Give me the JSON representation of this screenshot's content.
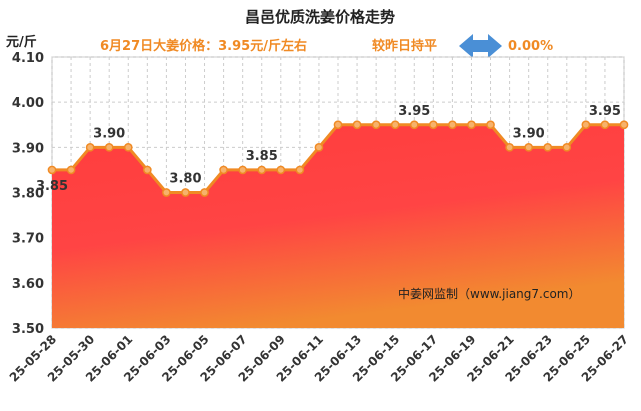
{
  "header": {
    "title": "昌邑优质洗姜价格走势",
    "unit": "元/斤",
    "price_note": "6月27日大姜价格：3.95元/斤左右",
    "compare_label": "较昨日持平",
    "change": "0.00%"
  },
  "watermark": "中姜网监制（www.jiang7.com）",
  "colors": {
    "line": "#f08a24",
    "fill_top": "#ff3d3d",
    "fill_bottom": "#f28a30",
    "arrow": "#4a8fd6",
    "accent_text": "#f08a24"
  },
  "chart_data": {
    "type": "area",
    "title": "昌邑优质洗姜价格走势",
    "ylabel": "元/斤",
    "ylim": [
      3.5,
      4.1
    ],
    "yticks": [
      "3.50",
      "3.60",
      "3.70",
      "3.80",
      "3.90",
      "4.00",
      "4.10"
    ],
    "grid": true,
    "x": [
      "25-05-28",
      "25-05-29",
      "25-05-30",
      "25-05-31",
      "25-06-01",
      "25-06-02",
      "25-06-03",
      "25-06-04",
      "25-06-05",
      "25-06-06",
      "25-06-07",
      "25-06-08",
      "25-06-09",
      "25-06-10",
      "25-06-11",
      "25-06-12",
      "25-06-13",
      "25-06-14",
      "25-06-15",
      "25-06-16",
      "25-06-17",
      "25-06-18",
      "25-06-19",
      "25-06-20",
      "25-06-21",
      "25-06-22",
      "25-06-23",
      "25-06-24",
      "25-06-25",
      "25-06-26",
      "25-06-27"
    ],
    "xticks": [
      "25-05-28",
      "25-05-30",
      "25-06-01",
      "25-06-03",
      "25-06-05",
      "25-06-07",
      "25-06-09",
      "25-06-11",
      "25-06-13",
      "25-06-15",
      "25-06-17",
      "25-06-19",
      "25-06-21",
      "25-06-23",
      "25-06-25",
      "25-06-27"
    ],
    "values": [
      3.85,
      3.85,
      3.9,
      3.9,
      3.9,
      3.85,
      3.8,
      3.8,
      3.8,
      3.85,
      3.85,
      3.85,
      3.85,
      3.85,
      3.9,
      3.95,
      3.95,
      3.95,
      3.95,
      3.95,
      3.95,
      3.95,
      3.95,
      3.95,
      3.9,
      3.9,
      3.9,
      3.9,
      3.95,
      3.95,
      3.95
    ],
    "data_labels": [
      {
        "index": 0,
        "text": "3.85"
      },
      {
        "index": 3,
        "text": "3.90"
      },
      {
        "index": 7,
        "text": "3.80"
      },
      {
        "index": 11,
        "text": "3.85"
      },
      {
        "index": 19,
        "text": "3.95"
      },
      {
        "index": 25,
        "text": "3.90"
      },
      {
        "index": 29,
        "text": "3.95"
      }
    ]
  }
}
